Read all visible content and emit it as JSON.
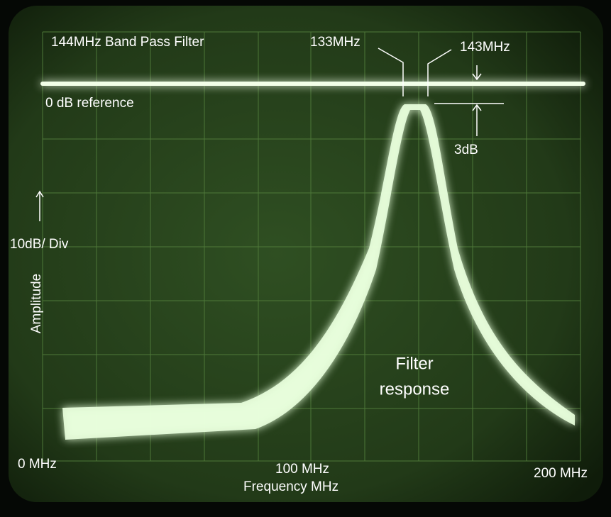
{
  "annotations": {
    "title": "144MHz Band Pass Filter",
    "lower_edge": "133MHz",
    "upper_edge": "143MHz",
    "reference": "0 dB reference",
    "ripple": "3dB",
    "scale": "10dB/ Div",
    "y_axis": "Amplitude",
    "trace_label": [
      "Filter",
      "response"
    ],
    "x_start": "0 MHz",
    "x_mid": "100 MHz",
    "x_axis": "Frequency MHz",
    "x_end": "200 MHz"
  }
}
